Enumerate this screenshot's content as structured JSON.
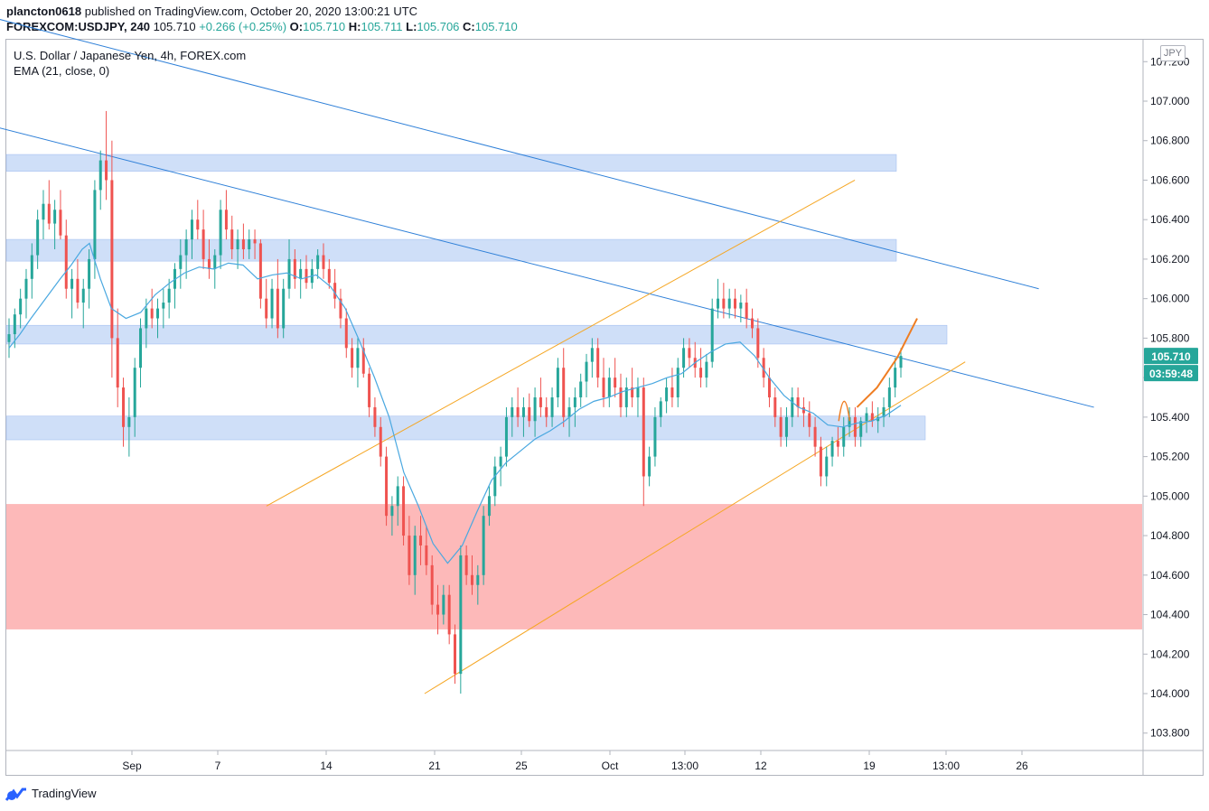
{
  "header": {
    "author": "plancton0618",
    "published": "published on TradingView.com, October 20, 2020 13:00:21 UTC",
    "symbol": "FOREXCOM:USDJPY, 240",
    "last": "105.710",
    "change": "+0.266 (+0.25%)",
    "o_label": "O:",
    "o_value": "105.710",
    "h_label": "H:",
    "h_value": "105.711",
    "l_label": "L:",
    "l_value": "105.706",
    "c_label": "C:",
    "c_value": "105.710",
    "up_color": "#26a69a"
  },
  "legend": {
    "title": "U.S. Dollar / Japanese Yen, 4h, FOREX.com",
    "indicator": "EMA (21, close, 0)"
  },
  "currency_badge": "JPY",
  "price_tag": {
    "price": "105.710",
    "countdown": "03:59:48",
    "color": "#26a69a"
  },
  "footer": {
    "logo_text": "TradingView"
  },
  "chart_data": {
    "type": "candlestick",
    "title": "U.S. Dollar / Japanese Yen, 4h, FOREX.com",
    "ylim": [
      103.7,
      107.3
    ],
    "y_ticks": [
      "107.200",
      "107.000",
      "106.800",
      "106.600",
      "106.400",
      "106.200",
      "106.000",
      "105.800",
      "105.600",
      "105.400",
      "105.200",
      "105.000",
      "104.800",
      "104.600",
      "104.400",
      "104.200",
      "104.000",
      "103.800"
    ],
    "x_ticks": [
      "Sep",
      "7",
      "14",
      "21",
      "25",
      "Oct",
      "13:00",
      "12",
      "19",
      "13:00",
      "26"
    ],
    "colors": {
      "up": "#26a69a",
      "down": "#ef5350",
      "ema": "#4aa8e0",
      "trend": "#2f80d8",
      "channel": "#f5a623",
      "support_zone": "#bfd4f5",
      "demand_zone": "#fdb1b1",
      "projection": "#ef7d22"
    },
    "zones": [
      {
        "kind": "resistance",
        "from": 106.645,
        "to": 106.73
      },
      {
        "kind": "resistance",
        "from": 106.19,
        "to": 106.3
      },
      {
        "kind": "resistance",
        "from": 105.77,
        "to": 105.865
      },
      {
        "kind": "support",
        "from": 105.285,
        "to": 105.405
      },
      {
        "kind": "demand",
        "from": 104.325,
        "to": 104.96
      }
    ],
    "ema_series": [
      [
        0,
        105.75
      ],
      [
        3,
        105.82
      ],
      [
        6,
        105.9
      ],
      [
        10,
        106.0
      ],
      [
        14,
        106.1
      ],
      [
        17,
        106.17
      ],
      [
        20,
        106.25
      ],
      [
        22,
        106.28
      ],
      [
        25,
        106.1
      ],
      [
        28,
        105.95
      ],
      [
        32,
        105.9
      ],
      [
        36,
        105.93
      ],
      [
        40,
        106.02
      ],
      [
        44,
        106.08
      ],
      [
        48,
        106.13
      ],
      [
        52,
        106.16
      ],
      [
        56,
        106.15
      ],
      [
        60,
        106.18
      ],
      [
        64,
        106.17
      ],
      [
        68,
        106.1
      ],
      [
        72,
        106.12
      ],
      [
        76,
        106.13
      ],
      [
        80,
        106.1
      ],
      [
        84,
        106.12
      ],
      [
        88,
        106.06
      ],
      [
        92,
        105.95
      ],
      [
        96,
        105.78
      ],
      [
        100,
        105.6
      ],
      [
        104,
        105.4
      ],
      [
        108,
        105.12
      ],
      [
        112,
        104.95
      ],
      [
        116,
        104.76
      ],
      [
        120,
        104.66
      ],
      [
        124,
        104.75
      ],
      [
        128,
        104.92
      ],
      [
        132,
        105.08
      ],
      [
        136,
        105.17
      ],
      [
        140,
        105.23
      ],
      [
        144,
        105.29
      ],
      [
        148,
        105.33
      ],
      [
        152,
        105.38
      ],
      [
        156,
        105.44
      ],
      [
        160,
        105.48
      ],
      [
        164,
        105.5
      ],
      [
        168,
        105.53
      ],
      [
        172,
        105.55
      ],
      [
        176,
        105.57
      ],
      [
        180,
        105.6
      ],
      [
        184,
        105.62
      ],
      [
        188,
        105.68
      ],
      [
        192,
        105.73
      ],
      [
        196,
        105.77
      ],
      [
        200,
        105.78
      ],
      [
        204,
        105.71
      ],
      [
        208,
        105.6
      ],
      [
        212,
        105.51
      ],
      [
        216,
        105.45
      ],
      [
        220,
        105.42
      ],
      [
        224,
        105.36
      ],
      [
        228,
        105.35
      ],
      [
        232,
        105.37
      ],
      [
        236,
        105.38
      ],
      [
        240,
        105.41
      ],
      [
        244,
        105.46
      ]
    ],
    "candles": [
      [
        105.78,
        105.9,
        105.7,
        105.82
      ],
      [
        105.82,
        105.95,
        105.75,
        105.92
      ],
      [
        105.92,
        106.05,
        105.85,
        106.0
      ],
      [
        106.0,
        106.15,
        105.9,
        106.1
      ],
      [
        106.1,
        106.28,
        106.0,
        106.22
      ],
      [
        106.22,
        106.45,
        106.15,
        106.4
      ],
      [
        106.4,
        106.55,
        106.3,
        106.48
      ],
      [
        106.48,
        106.6,
        106.35,
        106.38
      ],
      [
        106.38,
        106.5,
        106.25,
        106.45
      ],
      [
        106.45,
        106.55,
        106.3,
        106.32
      ],
      [
        106.32,
        106.4,
        106.0,
        106.05
      ],
      [
        106.05,
        106.15,
        105.9,
        106.1
      ],
      [
        106.1,
        106.2,
        105.95,
        105.98
      ],
      [
        105.98,
        106.1,
        105.85,
        106.05
      ],
      [
        106.05,
        106.25,
        105.95,
        106.2
      ],
      [
        106.2,
        106.6,
        106.1,
        106.55
      ],
      [
        106.55,
        106.75,
        106.45,
        106.7
      ],
      [
        106.7,
        106.95,
        106.5,
        106.6
      ],
      [
        106.6,
        106.8,
        105.6,
        105.8
      ],
      [
        105.8,
        105.95,
        105.45,
        105.55
      ],
      [
        105.55,
        105.6,
        105.25,
        105.35
      ],
      [
        105.35,
        105.5,
        105.2,
        105.4
      ],
      [
        105.4,
        105.7,
        105.3,
        105.65
      ],
      [
        105.65,
        105.9,
        105.55,
        105.85
      ],
      [
        105.85,
        106.0,
        105.75,
        105.95
      ],
      [
        105.95,
        106.05,
        105.85,
        105.9
      ],
      [
        105.9,
        106.0,
        105.8,
        105.95
      ],
      [
        105.95,
        106.05,
        105.85,
        105.98
      ],
      [
        105.98,
        106.1,
        105.9,
        106.05
      ],
      [
        106.05,
        106.18,
        105.95,
        106.15
      ],
      [
        106.15,
        106.3,
        106.05,
        106.22
      ],
      [
        106.22,
        106.35,
        106.1,
        106.3
      ],
      [
        106.3,
        106.45,
        106.2,
        106.4
      ],
      [
        106.4,
        106.5,
        106.3,
        106.35
      ],
      [
        106.35,
        106.45,
        106.15,
        106.2
      ],
      [
        106.2,
        106.3,
        106.1,
        106.15
      ],
      [
        106.15,
        106.25,
        106.05,
        106.22
      ],
      [
        106.22,
        106.5,
        106.15,
        106.45
      ],
      [
        106.45,
        106.55,
        106.3,
        106.35
      ],
      [
        106.35,
        106.42,
        106.2,
        106.25
      ],
      [
        106.25,
        106.35,
        106.15,
        106.3
      ],
      [
        106.3,
        106.38,
        106.2,
        106.25
      ],
      [
        106.25,
        106.35,
        106.2,
        106.3
      ],
      [
        106.3,
        106.35,
        106.2,
        106.28
      ],
      [
        106.28,
        106.3,
        105.95,
        106.0
      ],
      [
        106.0,
        106.1,
        105.85,
        105.9
      ],
      [
        105.9,
        106.1,
        105.85,
        106.05
      ],
      [
        106.05,
        106.2,
        105.8,
        105.85
      ],
      [
        105.85,
        106.1,
        105.8,
        106.05
      ],
      [
        106.05,
        106.3,
        106.0,
        106.2
      ],
      [
        106.2,
        106.25,
        106.05,
        106.1
      ],
      [
        106.1,
        106.2,
        106.0,
        106.15
      ],
      [
        106.15,
        106.22,
        106.05,
        106.08
      ],
      [
        106.08,
        106.2,
        106.05,
        106.15
      ],
      [
        106.15,
        106.25,
        106.1,
        106.22
      ],
      [
        106.22,
        106.28,
        106.1,
        106.15
      ],
      [
        106.15,
        106.2,
        106.05,
        106.08
      ],
      [
        106.08,
        106.15,
        105.95,
        106.0
      ],
      [
        106.0,
        106.05,
        105.85,
        105.9
      ],
      [
        105.9,
        105.95,
        105.7,
        105.75
      ],
      [
        105.75,
        105.8,
        105.6,
        105.65
      ],
      [
        105.65,
        105.8,
        105.55,
        105.75
      ],
      [
        105.75,
        105.8,
        105.6,
        105.62
      ],
      [
        105.62,
        105.65,
        105.4,
        105.45
      ],
      [
        105.45,
        105.5,
        105.3,
        105.35
      ],
      [
        105.35,
        105.4,
        105.15,
        105.2
      ],
      [
        105.2,
        105.25,
        104.85,
        104.9
      ],
      [
        104.9,
        105.0,
        104.8,
        104.95
      ],
      [
        104.95,
        105.1,
        104.85,
        105.05
      ],
      [
        105.05,
        105.1,
        104.75,
        104.8
      ],
      [
        104.8,
        104.9,
        104.55,
        104.6
      ],
      [
        104.6,
        104.85,
        104.5,
        104.8
      ],
      [
        104.8,
        104.9,
        104.65,
        104.75
      ],
      [
        104.75,
        104.85,
        104.6,
        104.65
      ],
      [
        104.65,
        104.7,
        104.4,
        104.45
      ],
      [
        104.45,
        104.55,
        104.3,
        104.4
      ],
      [
        104.4,
        104.55,
        104.35,
        104.5
      ],
      [
        104.5,
        104.55,
        104.25,
        104.3
      ],
      [
        104.3,
        104.35,
        104.05,
        104.1
      ],
      [
        104.1,
        104.75,
        104.0,
        104.7
      ],
      [
        104.7,
        104.75,
        104.55,
        104.6
      ],
      [
        104.6,
        104.7,
        104.5,
        104.55
      ],
      [
        104.55,
        104.65,
        104.45,
        104.6
      ],
      [
        104.6,
        104.95,
        104.55,
        104.9
      ],
      [
        104.9,
        105.05,
        104.85,
        105.0
      ],
      [
        105.0,
        105.2,
        104.95,
        105.15
      ],
      [
        105.15,
        105.25,
        105.05,
        105.2
      ],
      [
        105.2,
        105.45,
        105.15,
        105.4
      ],
      [
        105.4,
        105.5,
        105.3,
        105.45
      ],
      [
        105.45,
        105.55,
        105.35,
        105.4
      ],
      [
        105.4,
        105.5,
        105.3,
        105.45
      ],
      [
        105.45,
        105.52,
        105.35,
        105.38
      ],
      [
        105.38,
        105.55,
        105.3,
        105.5
      ],
      [
        105.5,
        105.6,
        105.4,
        105.45
      ],
      [
        105.45,
        105.5,
        105.35,
        105.4
      ],
      [
        105.4,
        105.55,
        105.35,
        105.5
      ],
      [
        105.5,
        105.7,
        105.45,
        105.65
      ],
      [
        105.65,
        105.75,
        105.35,
        105.4
      ],
      [
        105.4,
        105.5,
        105.3,
        105.45
      ],
      [
        105.45,
        105.55,
        105.35,
        105.5
      ],
      [
        105.5,
        105.62,
        105.45,
        105.58
      ],
      [
        105.58,
        105.72,
        105.5,
        105.68
      ],
      [
        105.68,
        105.8,
        105.6,
        105.75
      ],
      [
        105.75,
        105.8,
        105.55,
        105.6
      ],
      [
        105.6,
        105.7,
        105.45,
        105.5
      ],
      [
        105.5,
        105.65,
        105.45,
        105.6
      ],
      [
        105.6,
        105.7,
        105.5,
        105.55
      ],
      [
        105.55,
        105.62,
        105.4,
        105.45
      ],
      [
        105.45,
        105.6,
        105.4,
        105.55
      ],
      [
        105.55,
        105.65,
        105.45,
        105.5
      ],
      [
        105.5,
        105.6,
        105.4,
        105.55
      ],
      [
        105.55,
        105.6,
        104.95,
        105.1
      ],
      [
        105.1,
        105.25,
        105.05,
        105.2
      ],
      [
        105.2,
        105.45,
        105.15,
        105.4
      ],
      [
        105.4,
        105.5,
        105.35,
        105.48
      ],
      [
        105.48,
        105.6,
        105.42,
        105.55
      ],
      [
        105.55,
        105.65,
        105.45,
        105.5
      ],
      [
        105.5,
        105.7,
        105.45,
        105.65
      ],
      [
        105.65,
        105.8,
        105.6,
        105.75
      ],
      [
        105.75,
        105.8,
        105.65,
        105.7
      ],
      [
        105.7,
        105.78,
        105.6,
        105.65
      ],
      [
        105.65,
        105.75,
        105.55,
        105.6
      ],
      [
        105.6,
        105.72,
        105.55,
        105.68
      ],
      [
        105.68,
        106.0,
        105.65,
        105.95
      ],
      [
        105.95,
        106.1,
        105.9,
        106.0
      ],
      [
        106.0,
        106.08,
        105.9,
        105.95
      ],
      [
        105.95,
        106.05,
        105.9,
        106.0
      ],
      [
        106.0,
        106.05,
        105.9,
        105.95
      ],
      [
        105.95,
        106.02,
        105.88,
        105.98
      ],
      [
        105.98,
        106.05,
        105.85,
        105.9
      ],
      [
        105.9,
        105.95,
        105.8,
        105.85
      ],
      [
        105.85,
        105.9,
        105.65,
        105.7
      ],
      [
        105.7,
        105.75,
        105.55,
        105.6
      ],
      [
        105.6,
        105.65,
        105.45,
        105.5
      ],
      [
        105.5,
        105.55,
        105.35,
        105.4
      ],
      [
        105.4,
        105.45,
        105.25,
        105.3
      ],
      [
        105.3,
        105.45,
        105.25,
        105.4
      ],
      [
        105.4,
        105.55,
        105.35,
        105.5
      ],
      [
        105.5,
        105.55,
        105.4,
        105.45
      ],
      [
        105.45,
        105.5,
        105.35,
        105.42
      ],
      [
        105.42,
        105.48,
        105.3,
        105.35
      ],
      [
        105.35,
        105.4,
        105.2,
        105.25
      ],
      [
        105.25,
        105.3,
        105.05,
        105.1
      ],
      [
        105.1,
        105.25,
        105.05,
        105.2
      ],
      [
        105.2,
        105.3,
        105.15,
        105.28
      ],
      [
        105.28,
        105.35,
        105.2,
        105.25
      ],
      [
        105.25,
        105.4,
        105.2,
        105.35
      ],
      [
        105.35,
        105.45,
        105.3,
        105.4
      ],
      [
        105.4,
        105.45,
        105.25,
        105.3
      ],
      [
        105.3,
        105.4,
        105.25,
        105.38
      ],
      [
        105.38,
        105.45,
        105.32,
        105.42
      ],
      [
        105.42,
        105.48,
        105.35,
        105.38
      ],
      [
        105.38,
        105.45,
        105.32,
        105.4
      ],
      [
        105.4,
        105.5,
        105.35,
        105.45
      ],
      [
        105.45,
        105.6,
        105.4,
        105.55
      ],
      [
        105.55,
        105.7,
        105.5,
        105.65
      ],
      [
        105.65,
        105.75,
        105.6,
        105.71
      ]
    ],
    "trend_lines": [
      {
        "name": "upper-trend",
        "points": [
          [
            -10,
            107.45
          ],
          [
            280,
            106.05
          ]
        ]
      },
      {
        "name": "lower-trend",
        "points": [
          [
            -10,
            106.9
          ],
          [
            295,
            105.45
          ]
        ]
      }
    ],
    "channel_lines": [
      {
        "name": "channel-upper",
        "points": [
          [
            70,
            104.95
          ],
          [
            230,
            106.6
          ]
        ]
      },
      {
        "name": "channel-lower",
        "points": [
          [
            113,
            104.0
          ],
          [
            260,
            105.68
          ]
        ]
      }
    ],
    "projection_points": [
      [
        232,
        105.45
      ],
      [
        236,
        105.55
      ],
      [
        240,
        105.7
      ],
      [
        244,
        105.9
      ]
    ]
  }
}
